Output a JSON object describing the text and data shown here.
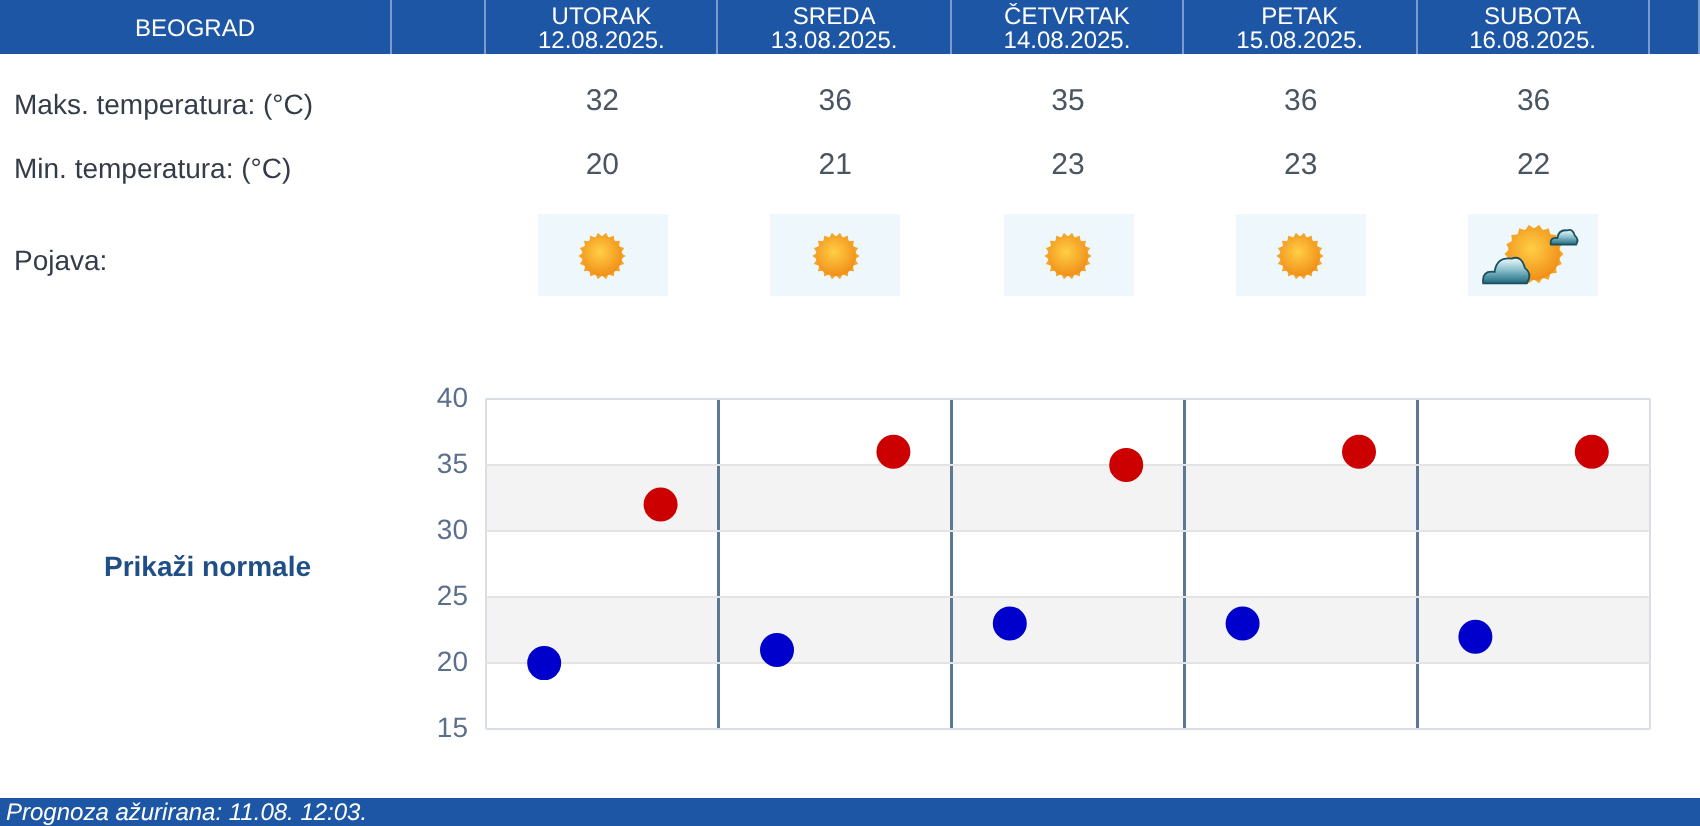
{
  "chart_data": {
    "type": "scatter",
    "title": "BEOGRAD",
    "categories": [
      null,
      null,
      null,
      null,
      null
    ],
    "series": [
      {
        "color": "#cc0000",
        "values": [
          32,
          36,
          35,
          36,
          36
        ]
      },
      {
        "color": "#0000cc",
        "values": [
          20,
          21,
          23,
          23,
          22
        ]
      }
    ],
    "ylim": [
      15,
      40
    ],
    "yticks": [
      15,
      20,
      25,
      30,
      35,
      40
    ],
    "grid": true,
    "marker": "circle",
    "data_labels": true,
    "bands": [
      {
        "axis": "y",
        "from": 20,
        "to": 25,
        "color": "#f3f3f3"
      },
      {
        "axis": "y",
        "from": 30,
        "to": 35,
        "color": "#f3f3f3"
      }
    ],
    "annotations": [
      "UTORAK 12.08.2025.",
      "SREDA 13.08.2025.",
      "ČETVRTAK 14.08.2025.",
      "PETAK 15.08.2025.",
      "SUBOTA 16.08.2025.",
      "Maks. temperatura: (°C)",
      "Min. temperatura: (°C)",
      "Pojava:",
      "Prikaži normale",
      "Prognoza ažurirana: 11.08. 12:03."
    ]
  }
}
